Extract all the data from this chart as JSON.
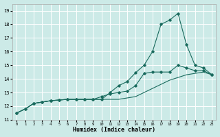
{
  "xlabel": "Humidex (Indice chaleur)",
  "background_color": "#cceae7",
  "grid_color": "#ffffff",
  "line_color": "#1a6b5e",
  "xlim": [
    -0.5,
    23.5
  ],
  "ylim": [
    11,
    19.5
  ],
  "xticks": [
    0,
    1,
    2,
    3,
    4,
    5,
    6,
    7,
    8,
    9,
    10,
    11,
    12,
    13,
    14,
    15,
    16,
    17,
    18,
    19,
    20,
    21,
    22,
    23
  ],
  "yticks": [
    11,
    12,
    13,
    14,
    15,
    16,
    17,
    18,
    19
  ],
  "series": [
    {
      "x": [
        0,
        1,
        2,
        3,
        4,
        5,
        6,
        7,
        8,
        9,
        10,
        11,
        12,
        13,
        14,
        15,
        16,
        17,
        18,
        19,
        20,
        21,
        22,
        23
      ],
      "y": [
        11.5,
        11.8,
        12.2,
        12.3,
        12.4,
        12.45,
        12.5,
        12.5,
        12.5,
        12.5,
        12.5,
        12.5,
        12.5,
        12.6,
        12.7,
        13.0,
        13.3,
        13.6,
        13.9,
        14.1,
        14.3,
        14.4,
        14.5,
        14.3
      ],
      "marker": false
    },
    {
      "x": [
        0,
        1,
        2,
        3,
        4,
        5,
        6,
        7,
        8,
        9,
        10,
        11,
        12,
        13,
        14,
        15,
        16,
        17,
        18,
        19,
        20,
        21,
        22,
        23
      ],
      "y": [
        11.5,
        11.8,
        12.2,
        12.3,
        12.4,
        12.45,
        12.5,
        12.5,
        12.5,
        12.5,
        12.7,
        12.9,
        13.0,
        13.1,
        13.5,
        14.4,
        14.5,
        14.5,
        14.5,
        15.0,
        14.8,
        14.6,
        14.6,
        14.3
      ],
      "marker": true
    },
    {
      "x": [
        0,
        1,
        2,
        3,
        4,
        5,
        6,
        7,
        8,
        9,
        10,
        11,
        12,
        13,
        14,
        15,
        16,
        17,
        18,
        19,
        20,
        21,
        22,
        23
      ],
      "y": [
        11.5,
        11.8,
        12.2,
        12.3,
        12.4,
        12.45,
        12.5,
        12.5,
        12.5,
        12.5,
        12.5,
        13.0,
        13.5,
        13.8,
        14.45,
        15.0,
        16.0,
        18.0,
        18.3,
        18.8,
        16.5,
        15.0,
        14.8,
        14.3
      ],
      "marker": true
    }
  ]
}
